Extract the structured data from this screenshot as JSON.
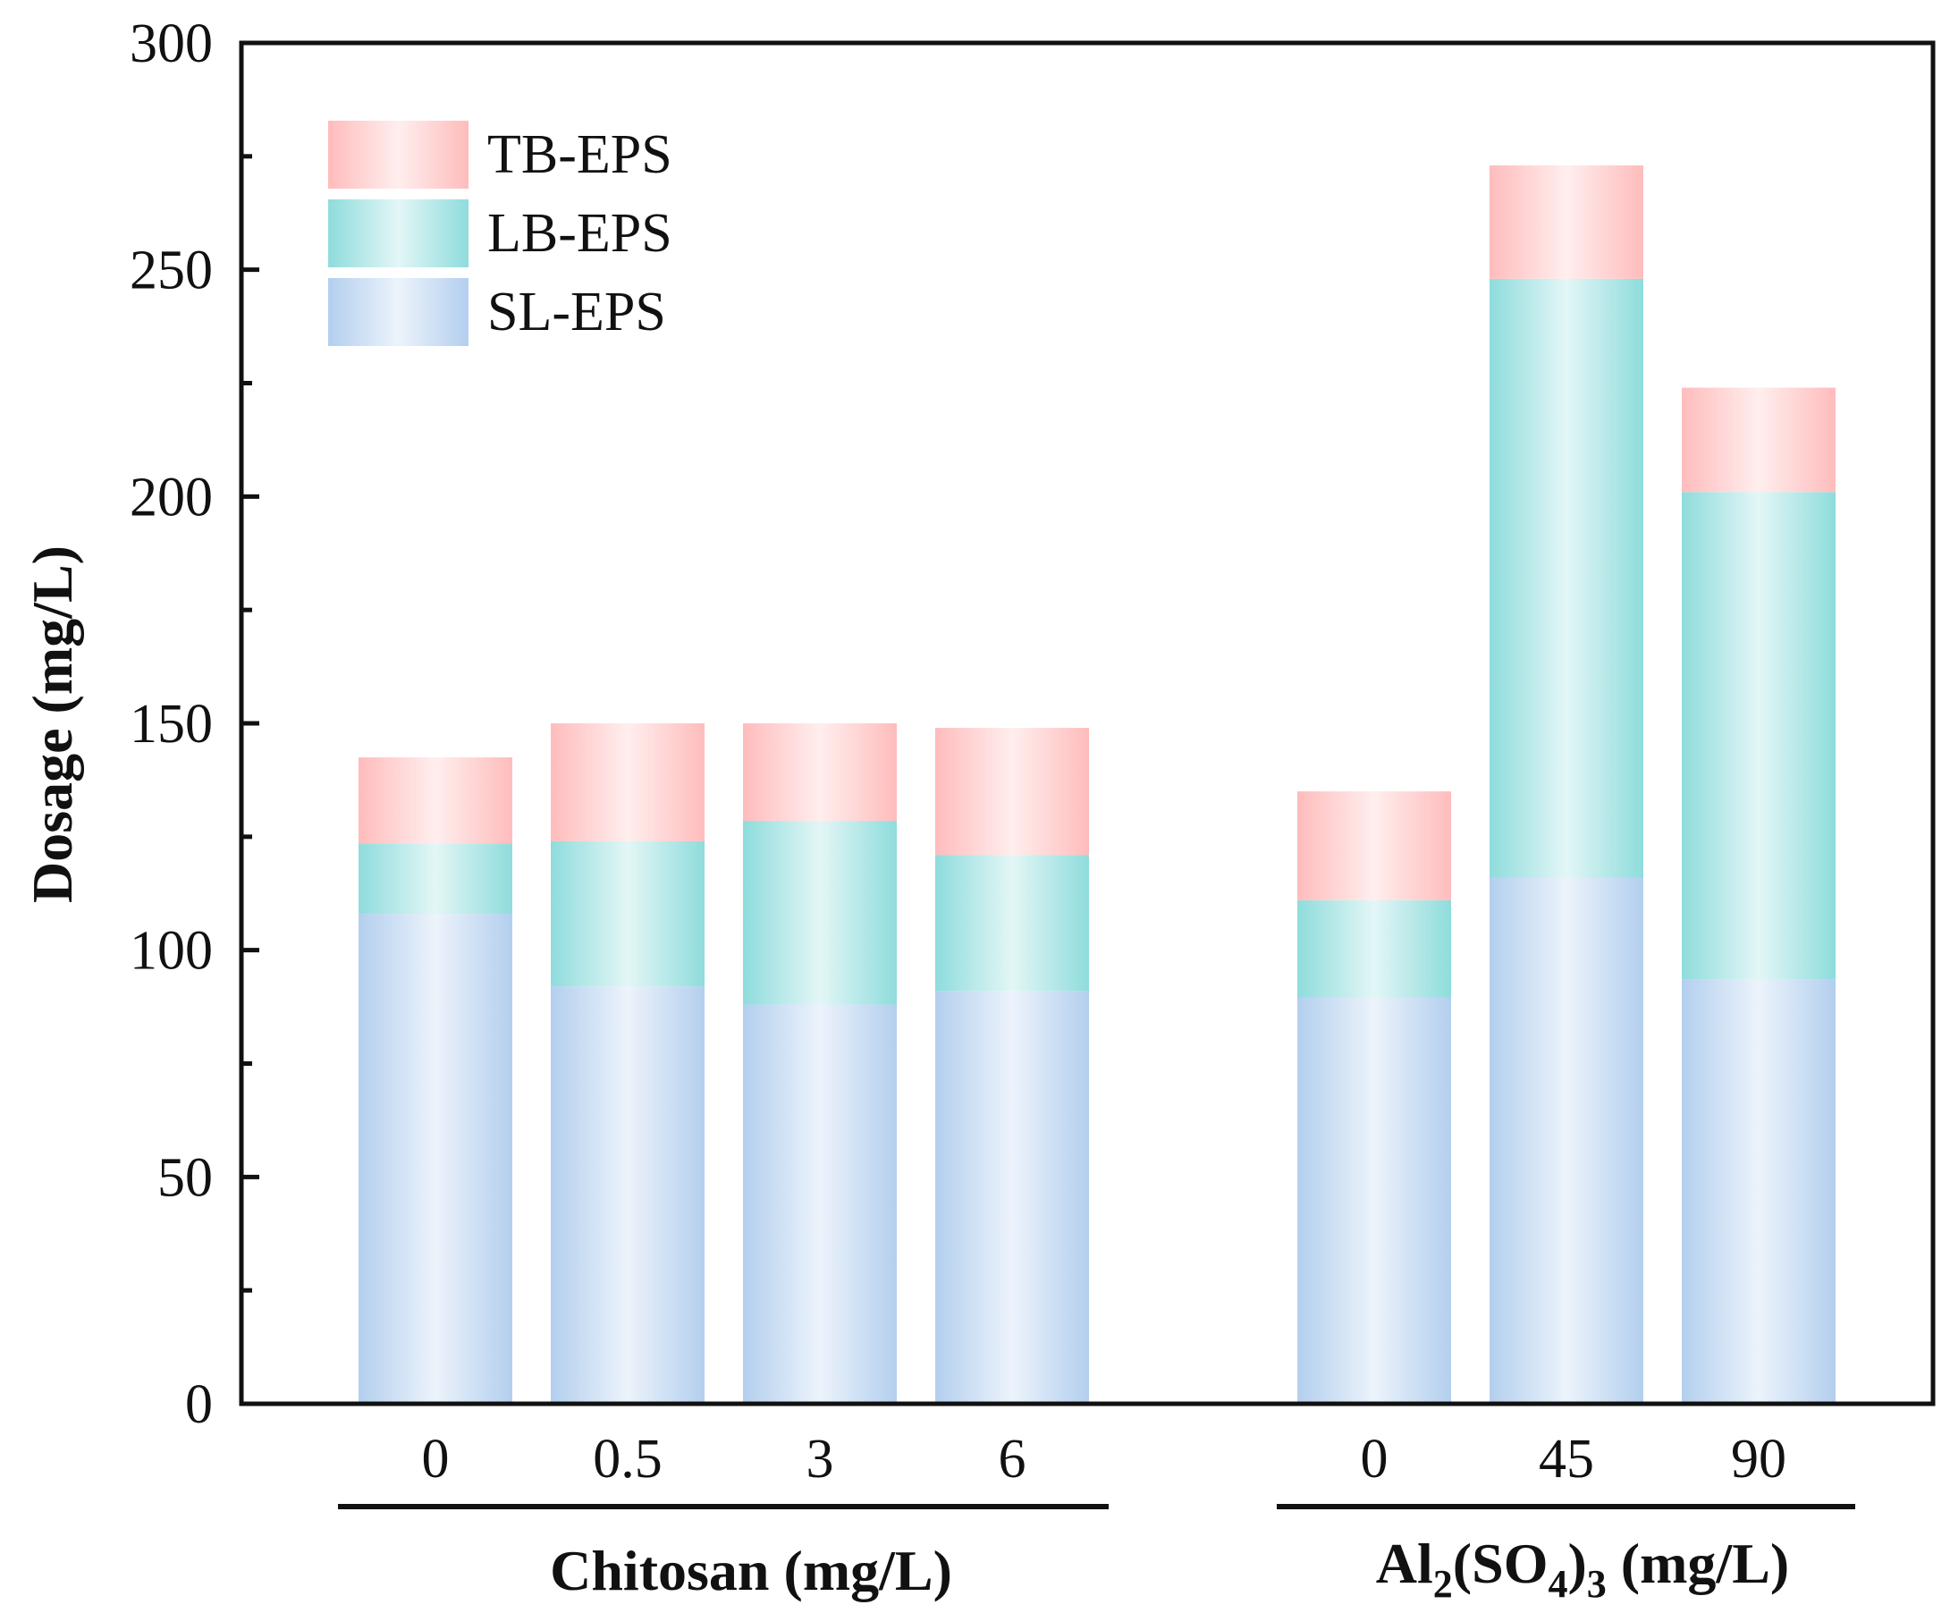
{
  "chart_data": {
    "type": "bar",
    "stacked": true,
    "ylabel": "Dosage (mg/L)",
    "ylim": [
      0,
      300
    ],
    "yticks": [
      "0",
      "50",
      "100",
      "150",
      "200",
      "250",
      "300"
    ],
    "legend_position": "top-left",
    "groups": [
      {
        "label": "Chitosan (mg/L)",
        "categories": [
          "0",
          "0.5",
          "3",
          "6"
        ]
      },
      {
        "label_parts": [
          "Al",
          "2",
          "(SO",
          "4",
          ")",
          "3",
          " (mg/L)"
        ],
        "categories": [
          "0",
          "45",
          "90"
        ]
      }
    ],
    "categories": [
      "0",
      "0.5",
      "3",
      "6",
      "0",
      "45",
      "90"
    ],
    "series": [
      {
        "name": "SL-EPS",
        "color": "#b3cfee",
        "values": [
          108,
          92,
          88,
          91,
          89.5,
          116,
          93.5
        ]
      },
      {
        "name": "LB-EPS",
        "color": "#8fdcdc",
        "values": [
          15.5,
          32,
          40.5,
          30,
          21.5,
          132,
          107.5
        ]
      },
      {
        "name": "TB-EPS",
        "color": "#ffbcbc",
        "values": [
          19,
          26,
          21.5,
          28,
          24,
          25,
          23
        ]
      }
    ]
  }
}
